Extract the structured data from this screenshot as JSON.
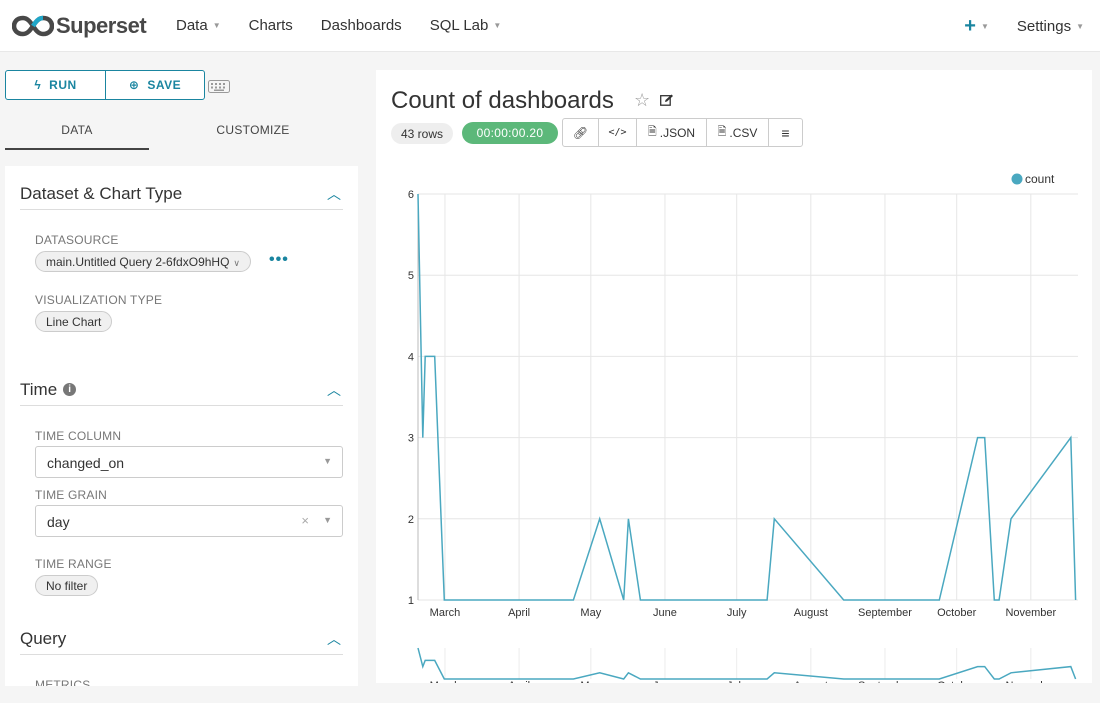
{
  "app": {
    "brand": "Superset",
    "nav": [
      {
        "label": "Data",
        "dropdown": true
      },
      {
        "label": "Charts",
        "dropdown": false
      },
      {
        "label": "Dashboards",
        "dropdown": false
      },
      {
        "label": "SQL Lab",
        "dropdown": true
      }
    ],
    "nav_right": {
      "settings_label": "Settings"
    }
  },
  "controls": {
    "run_label": "RUN",
    "save_label": "SAVE",
    "tabs": [
      "DATA",
      "CUSTOMIZE"
    ],
    "active_tab": "DATA"
  },
  "sections": {
    "dataset": {
      "title": "Dataset & Chart Type",
      "datasource_label": "DATASOURCE",
      "datasource_value": "main.Untitled Query 2-6fdxO9hHQ",
      "viz_label": "VISUALIZATION TYPE",
      "viz_value": "Line Chart"
    },
    "time": {
      "title": "Time",
      "time_column_label": "TIME COLUMN",
      "time_column_value": "changed_on",
      "time_grain_label": "TIME GRAIN",
      "time_grain_value": "day",
      "time_range_label": "TIME RANGE",
      "time_range_value": "No filter"
    },
    "query": {
      "title": "Query",
      "metrics_label": "METRICS"
    }
  },
  "chart_header": {
    "title": "Count of dashboards",
    "rows_badge": "43 rows",
    "time_badge": "00:00:00.20",
    "json_label": ".JSON",
    "csv_label": ".CSV"
  },
  "colors": {
    "accent": "#1a85a0",
    "series": "#4aa8c0",
    "success": "#5cb87a"
  },
  "chart_data": {
    "type": "line",
    "title": "",
    "xlabel": "",
    "ylabel": "",
    "legend_position": "top-right",
    "grid": true,
    "x_ticks": [
      "March",
      "April",
      "May",
      "June",
      "July",
      "August",
      "September",
      "October",
      "November"
    ],
    "y_ticks": [
      1,
      2,
      3,
      4,
      5,
      6
    ],
    "ylim": [
      1,
      6
    ],
    "xlim": [
      "2021-02-24",
      "2021-11-27"
    ],
    "series": [
      {
        "name": "count",
        "points": [
          {
            "x": "2021-02-24",
            "y": 6
          },
          {
            "x": "2021-02-26",
            "y": 3
          },
          {
            "x": "2021-02-27",
            "y": 4
          },
          {
            "x": "2021-03-03",
            "y": 4
          },
          {
            "x": "2021-03-07",
            "y": 1
          },
          {
            "x": "2021-04-30",
            "y": 1
          },
          {
            "x": "2021-05-11",
            "y": 2
          },
          {
            "x": "2021-05-21",
            "y": 1
          },
          {
            "x": "2021-05-23",
            "y": 2
          },
          {
            "x": "2021-05-28",
            "y": 1
          },
          {
            "x": "2021-07-20",
            "y": 1
          },
          {
            "x": "2021-07-23",
            "y": 2
          },
          {
            "x": "2021-08-21",
            "y": 1
          },
          {
            "x": "2021-09-30",
            "y": 1
          },
          {
            "x": "2021-10-16",
            "y": 3
          },
          {
            "x": "2021-10-19",
            "y": 3
          },
          {
            "x": "2021-10-23",
            "y": 1
          },
          {
            "x": "2021-10-25",
            "y": 1
          },
          {
            "x": "2021-10-30",
            "y": 2
          },
          {
            "x": "2021-11-24",
            "y": 3
          },
          {
            "x": "2021-11-26",
            "y": 1
          }
        ]
      }
    ]
  }
}
